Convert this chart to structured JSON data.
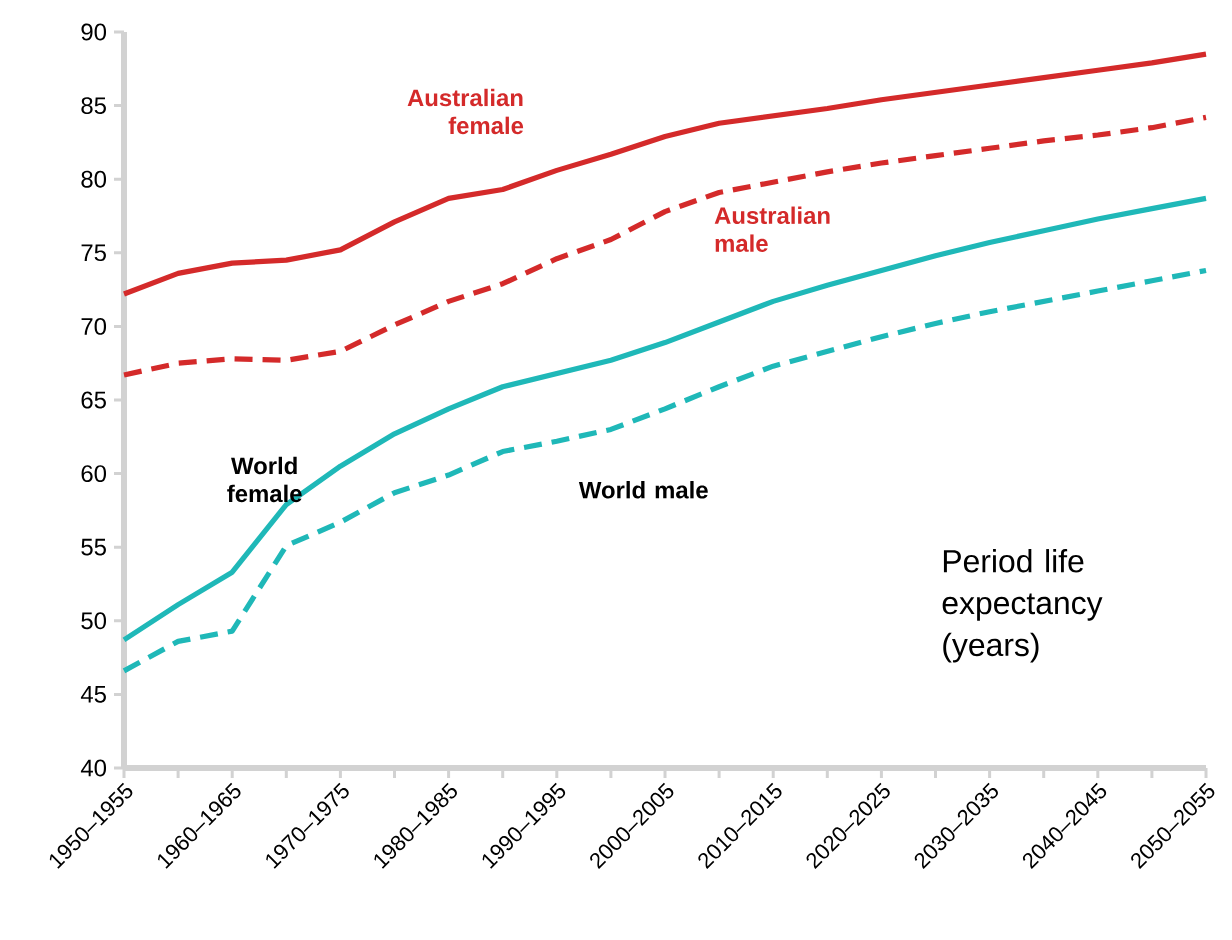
{
  "chart_data": {
    "type": "line",
    "title": "Period life expectancy (years)",
    "categories": [
      "1950–1955",
      null,
      "1960–1965",
      null,
      "1970–1975",
      null,
      "1980–1985",
      null,
      "1990–1995",
      null,
      "2000–2005",
      null,
      "2010–2015",
      null,
      "2020–2025",
      null,
      "2030–2035",
      null,
      "2040–2045",
      null,
      "2050–2055"
    ],
    "series": [
      {
        "name": "Australian female",
        "color": "#d42a2a",
        "line_style": "solid",
        "values": [
          72.2,
          73.6,
          74.3,
          74.5,
          75.2,
          77.1,
          78.7,
          79.3,
          80.6,
          81.7,
          82.9,
          83.8,
          84.3,
          84.8,
          85.4,
          85.9,
          86.4,
          86.9,
          87.4,
          87.9,
          88.5
        ]
      },
      {
        "name": "Australian male",
        "color": "#d42a2a",
        "line_style": "dashed",
        "values": [
          66.7,
          67.5,
          67.8,
          67.7,
          68.3,
          70.1,
          71.7,
          72.9,
          74.6,
          75.9,
          77.8,
          79.1,
          79.8,
          80.5,
          81.1,
          81.6,
          82.1,
          82.6,
          83.0,
          83.5,
          84.2
        ]
      },
      {
        "name": "World female",
        "color": "#1fb8b8",
        "line_style": "solid",
        "values": [
          48.7,
          51.1,
          53.3,
          57.9,
          60.5,
          62.7,
          64.4,
          65.9,
          66.8,
          67.7,
          68.9,
          70.3,
          71.7,
          72.8,
          73.8,
          74.8,
          75.7,
          76.5,
          77.3,
          78.0,
          78.7
        ]
      },
      {
        "name": "World male",
        "color": "#1fb8b8",
        "line_style": "dashed",
        "values": [
          46.6,
          48.6,
          49.3,
          55.1,
          56.7,
          58.7,
          59.9,
          61.5,
          62.2,
          63.0,
          64.4,
          65.9,
          67.3,
          68.3,
          69.3,
          70.2,
          71.0,
          71.7,
          72.4,
          73.1,
          73.8
        ]
      }
    ],
    "ylim": [
      40,
      90
    ],
    "yticks": [
      40,
      45,
      50,
      55,
      60,
      65,
      70,
      75,
      80,
      85,
      90
    ],
    "grid": false,
    "legend": false,
    "marker": "none"
  }
}
